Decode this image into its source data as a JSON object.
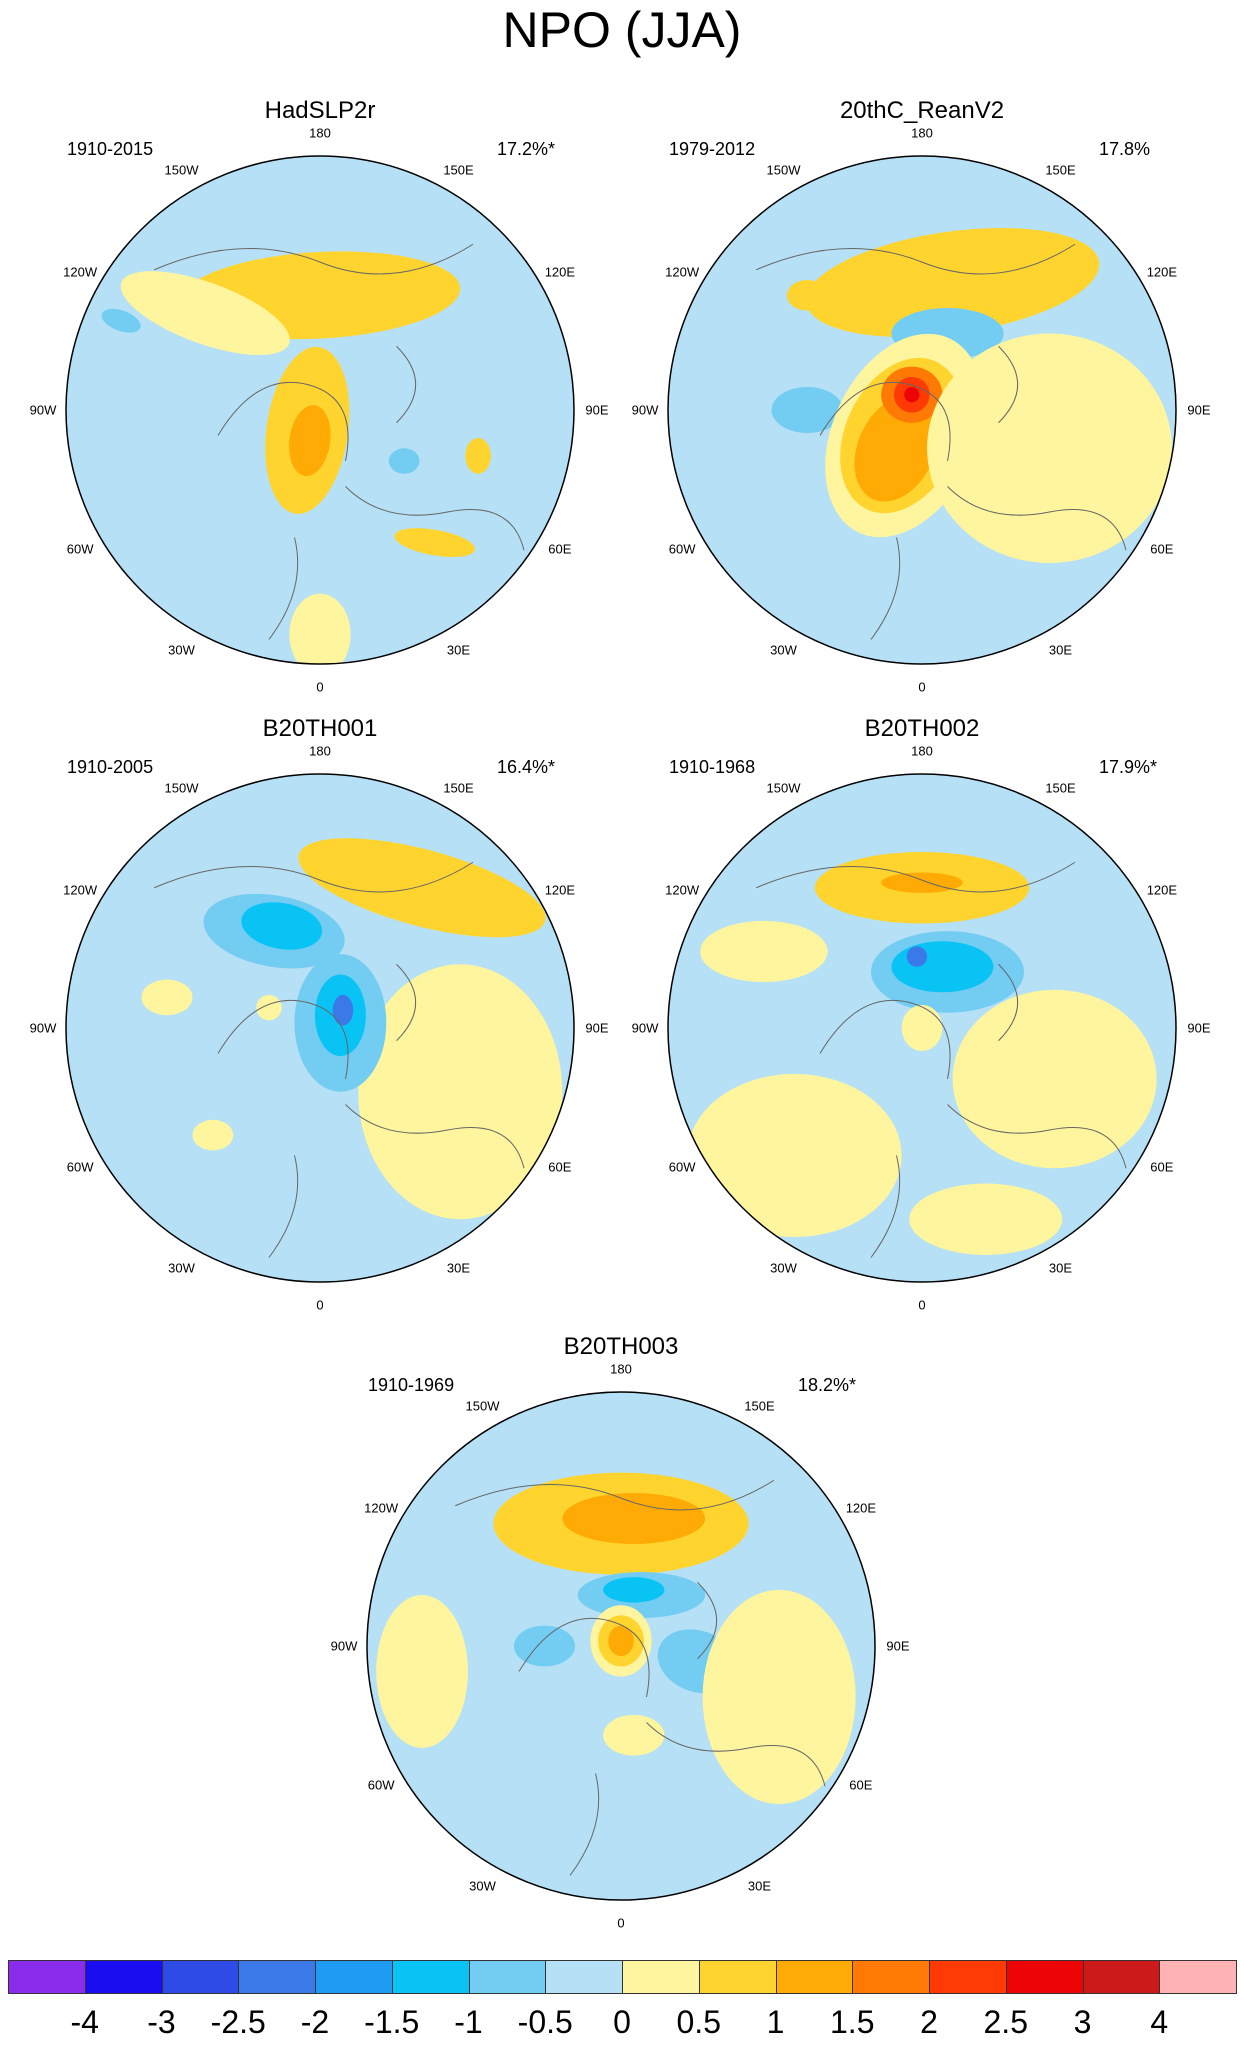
{
  "title": "NPO (JJA)",
  "lon_labels": {
    "lon_180": "180",
    "lon_150W": "150W",
    "lon_150E": "150E",
    "lon_120W": "120W",
    "lon_120E": "120E",
    "lon_90W": "90W",
    "lon_90E": "90E",
    "lon_60W": "60W",
    "lon_60E": "60E",
    "lon_30W": "30W",
    "lon_30E": "30E",
    "lon_0": "0"
  },
  "panels": [
    {
      "name": "HadSLP2r",
      "period": "1910-2015",
      "variance": "17.2%*"
    },
    {
      "name": "20thC_ReanV2",
      "period": "1979-2012",
      "variance": "17.8%"
    },
    {
      "name": "B20TH001",
      "period": "1910-2005",
      "variance": "16.4%*"
    },
    {
      "name": "B20TH002",
      "period": "1910-1968",
      "variance": "17.9%*"
    },
    {
      "name": "B20TH003",
      "period": "1910-1969",
      "variance": "18.2%*"
    }
  ],
  "colorbar": {
    "labels": [
      "-4",
      "-3",
      "-2.5",
      "-2",
      "-1.5",
      "-1",
      "-0.5",
      "0",
      "0.5",
      "1",
      "1.5",
      "2",
      "2.5",
      "3",
      "4"
    ],
    "colors": [
      "#8B2BEB",
      "#1A0DF2",
      "#2E4BE6",
      "#3B78E8",
      "#1F9BF3",
      "#09C3F4",
      "#73CCF2",
      "#B5E0F5",
      "#FFF59E",
      "#FFD42E",
      "#FFAA05",
      "#FF7A05",
      "#FF3A05",
      "#ED0505",
      "#CC1A1A",
      "#FFB3B3"
    ]
  },
  "fills": {
    "neg_light": "#B5E0F5",
    "neg_mid": "#73CCF2",
    "neg_strong": "#09C3F4",
    "neg_deep": "#3B78E8",
    "pos_light": "#FFF59E",
    "pos_mid": "#FFD42E",
    "pos_strong": "#FFAA05",
    "pos_deep": "#FF7A05",
    "pos_red": "#FF3A05",
    "pos_core": "#ED0505"
  }
}
